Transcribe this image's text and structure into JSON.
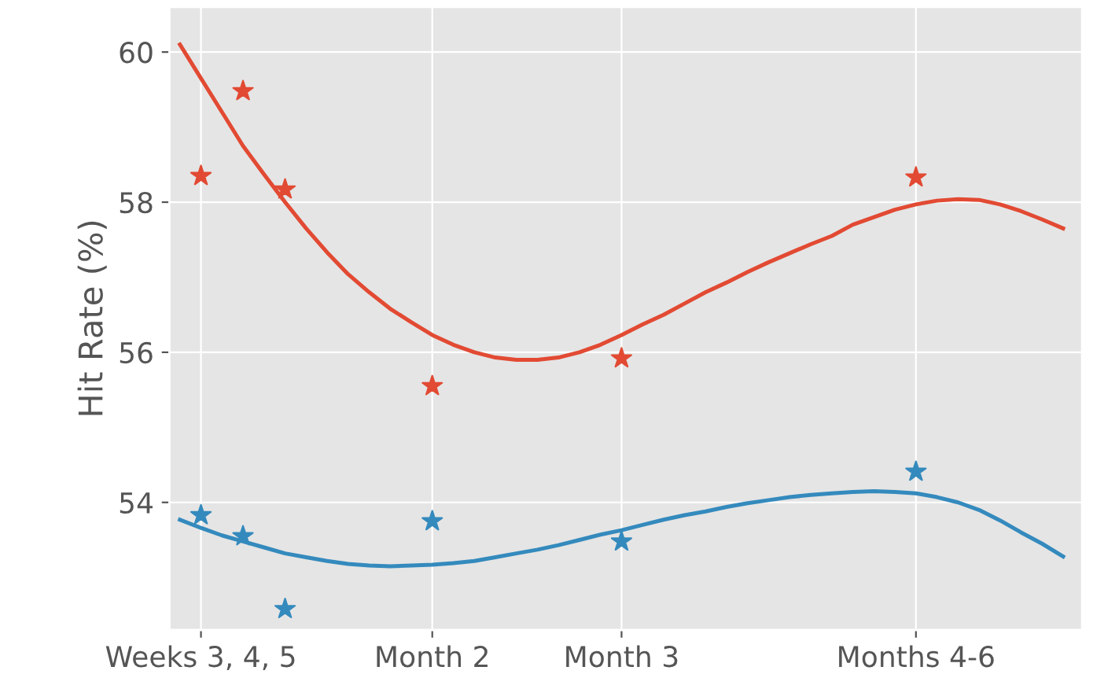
{
  "chart_data": {
    "type": "scatter",
    "ylabel": "Hit Rate (%)",
    "ylim": [
      52.3,
      60.6
    ],
    "yticks": [
      54,
      56,
      58,
      60
    ],
    "grid": true,
    "categories": [
      null,
      "Weeks 3, 4, 5",
      null,
      null,
      null,
      null,
      null,
      null,
      null,
      null,
      null,
      null,
      "Month 2",
      null,
      null,
      null,
      null,
      null,
      null,
      null,
      null,
      "Month 3",
      null,
      null,
      null,
      null,
      null,
      null,
      null,
      null,
      null,
      null,
      null,
      null,
      null,
      "Months 4-6",
      null,
      null,
      null,
      null,
      null,
      null,
      null
    ],
    "series": [
      {
        "color": "#e24a33",
        "marker": "star",
        "values": [
          null,
          58.35,
          null,
          59.48,
          null,
          58.17,
          null,
          null,
          null,
          null,
          null,
          null,
          55.55,
          null,
          null,
          null,
          null,
          null,
          null,
          null,
          null,
          55.92,
          null,
          null,
          null,
          null,
          null,
          null,
          null,
          null,
          null,
          null,
          null,
          null,
          null,
          58.33,
          null,
          null,
          null,
          null,
          null,
          null,
          null
        ]
      },
      {
        "color": "#348abd",
        "marker": "star",
        "values": [
          null,
          53.83,
          null,
          53.55,
          null,
          52.58,
          null,
          null,
          null,
          null,
          null,
          null,
          53.75,
          null,
          null,
          null,
          null,
          null,
          null,
          null,
          null,
          53.48,
          null,
          null,
          null,
          null,
          null,
          null,
          null,
          null,
          null,
          null,
          null,
          null,
          null,
          54.41,
          null,
          null,
          null,
          null,
          null,
          null,
          null
        ]
      },
      {
        "type": "line",
        "color": "#e24a33",
        "values": [
          60.1,
          59.65,
          59.2,
          58.75,
          58.37,
          58.0,
          57.65,
          57.33,
          57.04,
          56.8,
          56.58,
          56.4,
          56.23,
          56.1,
          56.0,
          55.93,
          55.9,
          55.9,
          55.93,
          56.0,
          56.1,
          56.23,
          56.37,
          56.5,
          56.65,
          56.8,
          56.93,
          57.07,
          57.2,
          57.32,
          57.44,
          57.55,
          57.7,
          57.8,
          57.9,
          57.97,
          58.02,
          58.04,
          58.03,
          57.97,
          57.88,
          57.77,
          57.65
        ]
      },
      {
        "type": "line",
        "color": "#348abd",
        "values": [
          53.77,
          53.66,
          53.56,
          53.48,
          53.4,
          53.32,
          53.27,
          53.22,
          53.18,
          53.16,
          53.15,
          53.16,
          53.17,
          53.19,
          53.22,
          53.27,
          53.32,
          53.37,
          53.43,
          53.5,
          53.57,
          53.63,
          53.7,
          53.77,
          53.83,
          53.88,
          53.94,
          53.99,
          54.03,
          54.07,
          54.1,
          54.12,
          54.14,
          54.15,
          54.14,
          54.12,
          54.07,
          54.0,
          53.9,
          53.76,
          53.6,
          53.45,
          53.28
        ]
      }
    ]
  }
}
